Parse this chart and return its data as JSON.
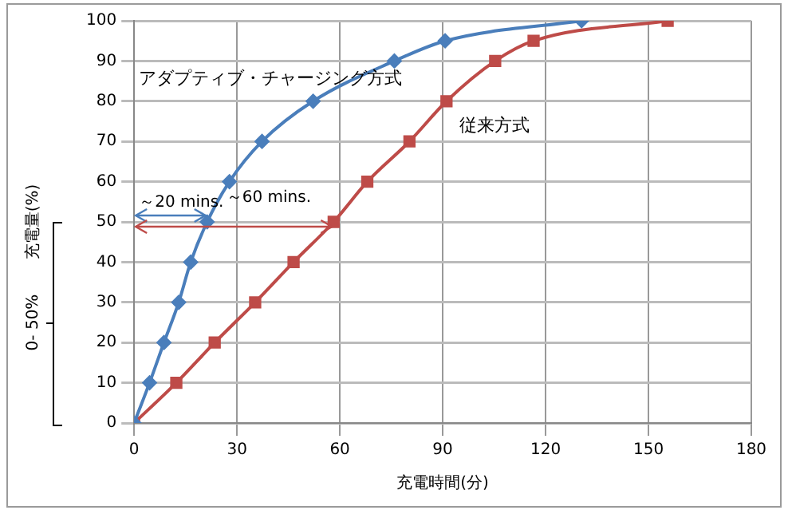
{
  "chart_data": {
    "type": "line",
    "xlabel": "充電時間(分)",
    "ylabel": "充電量(%)",
    "xlim": [
      0,
      180
    ],
    "xticks": [
      0,
      30,
      60,
      90,
      120,
      150,
      180
    ],
    "ylim": [
      0,
      100
    ],
    "yticks": [
      0,
      10,
      20,
      30,
      40,
      50,
      60,
      70,
      80,
      90,
      100
    ],
    "grid": true,
    "legend": false,
    "line_style": "solid",
    "series": [
      {
        "name": "アダプティブ・チャージング方式",
        "color": "#4a7ebb",
        "marker": "diamond",
        "x": [
          0,
          4.5,
          8.7,
          13,
          16.5,
          21.3,
          27.8,
          37.3,
          52.2,
          75.9,
          90.7,
          130.5
        ],
        "values": [
          0,
          10,
          20,
          30,
          40,
          50,
          60,
          70,
          80,
          90,
          95,
          100
        ]
      },
      {
        "name": "従来方式",
        "color": "#be4b48",
        "marker": "square",
        "x": [
          0,
          12.3,
          23.5,
          35.3,
          46.5,
          58.2,
          68,
          80.3,
          91.1,
          105.3,
          116.5,
          155.6
        ],
        "values": [
          0,
          10,
          20,
          30,
          40,
          50,
          60,
          70,
          80,
          90,
          95,
          100
        ]
      }
    ],
    "annotations": [
      {
        "text": "～20 mins.",
        "x": 21.3,
        "y": 50
      },
      {
        "text": "～60 mins.",
        "x": 58.2,
        "y": 50
      },
      "0- 50%"
    ]
  }
}
